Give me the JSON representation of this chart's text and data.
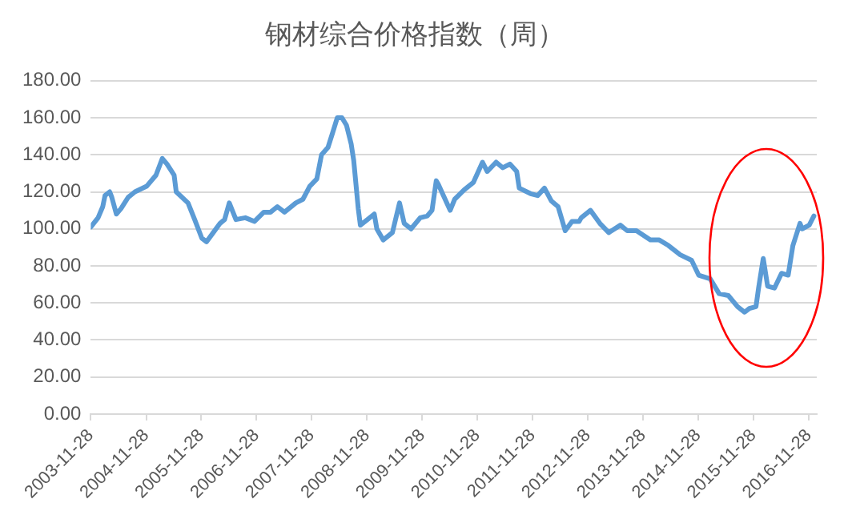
{
  "chart_data": {
    "type": "line",
    "title": "钢材综合价格指数（周）",
    "x": [
      "2003-11-28",
      "2004-01-15",
      "2004-02-15",
      "2004-03-01",
      "2004-04-01",
      "2004-04-15",
      "2004-05-15",
      "2004-06-15",
      "2004-08-01",
      "2004-09-15",
      "2004-12-01",
      "2005-02-01",
      "2005-03-15",
      "2005-04-15",
      "2005-06-01",
      "2005-06-15",
      "2005-09-01",
      "2005-10-15",
      "2005-12-01",
      "2006-01-01",
      "2006-02-15",
      "2006-04-01",
      "2006-05-01",
      "2006-06-01",
      "2006-07-15",
      "2006-09-15",
      "2006-11-15",
      "2007-01-15",
      "2007-03-01",
      "2007-04-15",
      "2007-06-01",
      "2007-08-15",
      "2007-10-01",
      "2007-11-15",
      "2008-01-01",
      "2008-02-01",
      "2008-03-15",
      "2008-04-15",
      "2008-05-15",
      "2008-06-15",
      "2008-07-15",
      "2008-08-15",
      "2008-09-01",
      "2008-10-01",
      "2008-10-15",
      "2008-12-01",
      "2009-01-15",
      "2009-02-01",
      "2009-03-15",
      "2009-05-15",
      "2009-07-01",
      "2009-08-01",
      "2009-09-15",
      "2009-11-15",
      "2010-01-01",
      "2010-02-01",
      "2010-03-01",
      "2010-03-15",
      "2010-06-01",
      "2010-07-01",
      "2010-09-01",
      "2010-11-01",
      "2011-01-01",
      "2011-02-01",
      "2011-04-01",
      "2011-05-15",
      "2011-07-01",
      "2011-08-15",
      "2011-09-01",
      "2011-11-15",
      "2012-01-01",
      "2012-02-15",
      "2012-04-01",
      "2012-05-15",
      "2012-07-01",
      "2012-08-15",
      "2012-10-01",
      "2012-10-15",
      "2012-12-15",
      "2013-02-15",
      "2013-04-15",
      "2013-07-01",
      "2013-08-15",
      "2013-10-15",
      "2014-01-15",
      "2014-03-15",
      "2014-05-15",
      "2014-08-01",
      "2014-10-15",
      "2014-12-01",
      "2015-02-15",
      "2015-04-15",
      "2015-06-15",
      "2015-08-15",
      "2015-10-01",
      "2015-11-01",
      "2015-12-15",
      "2016-01-01",
      "2016-02-01",
      "2016-03-01",
      "2016-04-15",
      "2016-06-01",
      "2016-07-15",
      "2016-08-15",
      "2016-10-01",
      "2016-10-15",
      "2016-12-01",
      "2017-01-01"
    ],
    "series": [
      {
        "color": "#5b9bd5",
        "values": [
          101,
          106,
          112,
          118,
          120,
          117,
          108,
          111,
          117,
          120,
          123,
          129,
          138,
          135,
          129,
          120,
          114,
          105,
          95,
          93,
          98,
          103,
          105,
          114,
          105,
          106,
          104,
          109,
          109,
          112,
          109,
          114,
          116,
          123,
          127,
          140,
          144,
          152,
          160,
          160,
          156,
          146,
          137,
          111,
          102,
          105,
          108,
          100,
          94,
          98,
          114,
          103,
          100,
          106,
          107,
          110,
          126,
          124,
          110,
          116,
          121,
          125,
          136,
          131,
          136,
          133,
          135,
          131,
          122,
          119,
          118,
          122,
          115,
          112,
          99,
          104,
          104,
          106,
          110,
          103,
          98,
          102,
          99,
          99,
          94,
          94,
          91,
          86,
          83,
          75,
          73,
          65,
          64,
          58,
          55,
          57,
          58,
          68,
          84,
          69,
          68,
          76,
          75,
          91,
          103,
          100,
          102,
          107
        ]
      }
    ],
    "xlim": [
      "2003-11-28",
      "2017-01-20"
    ],
    "xticks": [
      "2003-11-28",
      "2004-11-28",
      "2005-11-28",
      "2006-11-28",
      "2007-11-28",
      "2008-11-28",
      "2009-11-28",
      "2010-11-28",
      "2011-11-28",
      "2012-11-28",
      "2013-11-28",
      "2014-11-28",
      "2015-11-28",
      "2016-11-28"
    ],
    "ylim": [
      0,
      180
    ],
    "yticks": [
      {
        "value": 0,
        "label": "0.00"
      },
      {
        "value": 20,
        "label": "20.00"
      },
      {
        "value": 40,
        "label": "40.00"
      },
      {
        "value": 60,
        "label": "60.00"
      },
      {
        "value": 80,
        "label": "80.00"
      },
      {
        "value": 100,
        "label": "100.00"
      },
      {
        "value": 120,
        "label": "120.00"
      },
      {
        "value": 140,
        "label": "140.00"
      },
      {
        "value": 160,
        "label": "160.00"
      },
      {
        "value": 180,
        "label": "180.00"
      }
    ],
    "grid": "y",
    "legend": false,
    "marker": "none",
    "line_style": "solid"
  }
}
